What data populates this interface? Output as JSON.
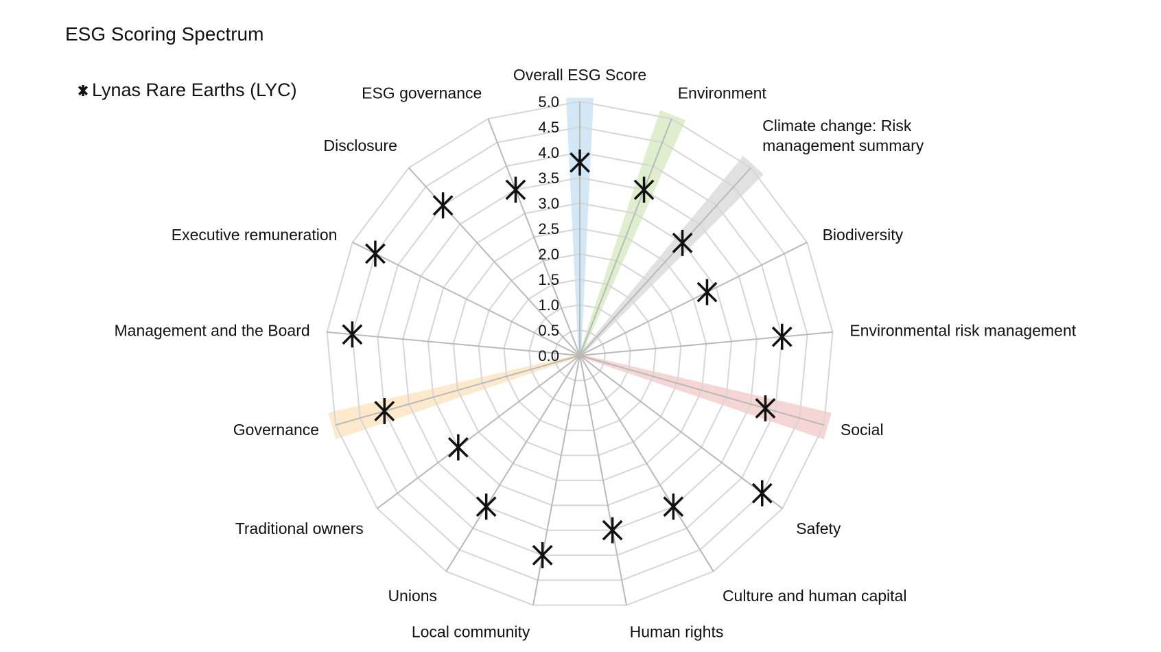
{
  "chart_data": {
    "type": "radar",
    "title": "ESG Scoring Spectrum",
    "legend": {
      "placement": "top-left",
      "entries": [
        "Lynas Rare Earths (LYC)"
      ]
    },
    "rlim": [
      0,
      5
    ],
    "ticks": [
      "0.0",
      "0.5",
      "1.0",
      "1.5",
      "2.0",
      "2.5",
      "3.0",
      "3.5",
      "4.0",
      "4.5",
      "5.0"
    ],
    "grid": true,
    "categories": [
      [
        "Overall ESG Score"
      ],
      [
        "Environment"
      ],
      [
        "Climate change: Risk",
        "management summary"
      ],
      [
        "Biodiversity"
      ],
      [
        "Environmental risk management"
      ],
      [
        "Social"
      ],
      [
        "Safety"
      ],
      [
        "Culture and human capital"
      ],
      [
        "Human rights"
      ],
      [
        "Local community"
      ],
      [
        "Unions"
      ],
      [
        "Traditional owners"
      ],
      [
        "Governance"
      ],
      [
        "Management and the Board"
      ],
      [
        "Executive remuneration"
      ],
      [
        "Disclosure"
      ],
      [
        "ESG governance"
      ]
    ],
    "series": [
      {
        "name": "Lynas Rare Earths (LYC)",
        "marker": "asterisk",
        "color": "#111111",
        "values": [
          3.8,
          3.5,
          3.0,
          2.8,
          4.0,
          3.8,
          4.5,
          3.5,
          3.5,
          4.0,
          3.5,
          3.0,
          4.0,
          4.5,
          4.5,
          4.0,
          3.5
        ]
      }
    ],
    "highlight_bands": [
      {
        "category": "Overall ESG Score",
        "color": "#aed6f1"
      },
      {
        "category": "Environment",
        "color": "#c5e1a5"
      },
      {
        "category": "Climate change: Risk management summary",
        "color": "#c8c8c8"
      },
      {
        "category": "Social",
        "color": "#efb3b3"
      },
      {
        "category": "Governance",
        "color": "#fbd7a1"
      }
    ]
  }
}
